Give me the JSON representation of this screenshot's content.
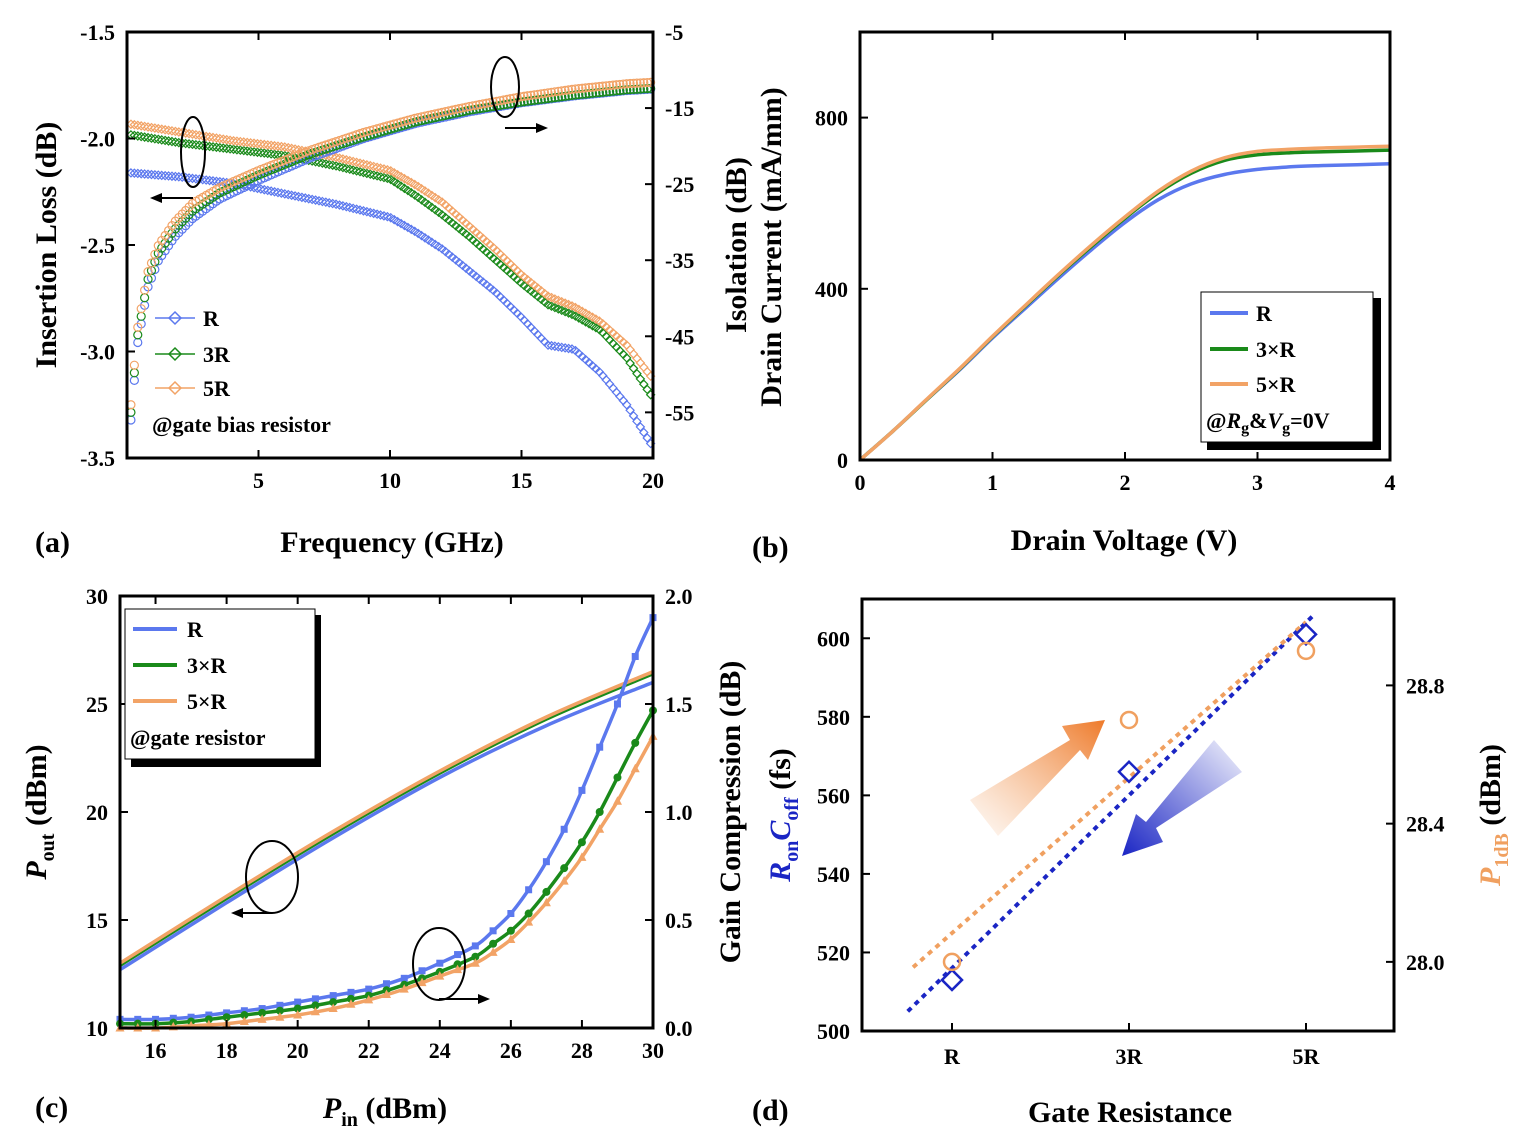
{
  "colors": {
    "R": "#5b78ee",
    "R3": "#1a8a1a",
    "R5": "#f2a366",
    "blue_dark": "#1a25c4",
    "orange": "#f0a060"
  },
  "chart_data": [
    {
      "panel": "(a)",
      "type": "scatter",
      "xlabel": "Frequency (GHz)",
      "ylabel": "Insertion Loss (dB)",
      "y2label": "Isolation (dB)",
      "xlim": [
        0,
        20
      ],
      "ylim": [
        -3.5,
        -1.5
      ],
      "y2lim": [
        -61,
        -5
      ],
      "xticks": [
        5,
        10,
        15,
        20
      ],
      "xtick_labels": [
        "5",
        "10",
        "15",
        "20"
      ],
      "yticks": [
        -3.5,
        -3.0,
        -2.5,
        -2.0,
        -1.5
      ],
      "ytick_labels": [
        "-3.5",
        "-3.0",
        "-2.5",
        "-2.0",
        "-1.5"
      ],
      "y2ticks": [
        -55,
        -45,
        -35,
        -25,
        -15,
        -5
      ],
      "y2tick_labels": [
        "-55",
        "-45",
        "-35",
        "-25",
        "-15",
        "-5"
      ],
      "legend": [
        "R",
        "3R",
        "5R"
      ],
      "annotation": "@gate bias resistor",
      "insertion_loss": {
        "x": [
          0,
          2,
          4,
          6,
          8,
          10,
          11,
          12,
          13,
          14,
          15,
          16,
          17,
          18,
          19,
          20
        ],
        "series": [
          {
            "name": "R",
            "values": [
              -2.16,
              -2.18,
              -2.21,
              -2.26,
              -2.31,
              -2.37,
              -2.44,
              -2.52,
              -2.62,
              -2.72,
              -2.84,
              -2.97,
              -2.99,
              -3.1,
              -3.25,
              -3.45
            ]
          },
          {
            "name": "3R",
            "values": [
              -1.98,
              -2.02,
              -2.05,
              -2.08,
              -2.13,
              -2.19,
              -2.27,
              -2.36,
              -2.46,
              -2.57,
              -2.68,
              -2.78,
              -2.83,
              -2.9,
              -3.03,
              -3.22
            ]
          },
          {
            "name": "5R",
            "values": [
              -1.93,
              -1.97,
              -2.01,
              -2.04,
              -2.09,
              -2.15,
              -2.22,
              -2.3,
              -2.41,
              -2.52,
              -2.64,
              -2.74,
              -2.79,
              -2.86,
              -2.97,
              -3.13
            ]
          }
        ]
      },
      "isolation": {
        "x": [
          0.15,
          0.4,
          0.8,
          1.2,
          1.8,
          2.5,
          3.5,
          5,
          7,
          9,
          11,
          13,
          15,
          17,
          19,
          20
        ],
        "series": [
          {
            "name": "R",
            "values": [
              -56,
              -46,
              -38.5,
              -35,
              -32,
              -29.5,
              -27,
              -24.5,
              -21.5,
              -19,
              -17,
              -15.5,
              -14.3,
              -13.4,
              -12.7,
              -12.5
            ]
          },
          {
            "name": "3R",
            "values": [
              -55,
              -45,
              -37.5,
              -34,
              -31,
              -28.5,
              -26.2,
              -23.8,
              -21,
              -18.8,
              -16.8,
              -15.3,
              -14.2,
              -13.3,
              -12.6,
              -12.4
            ]
          },
          {
            "name": "5R",
            "values": [
              -54,
              -44,
              -36.5,
              -33,
              -30,
              -27.5,
              -25.5,
              -23.2,
              -20.5,
              -18.2,
              -16.3,
              -14.8,
              -13.5,
              -12.5,
              -11.8,
              -11.6
            ]
          }
        ]
      }
    },
    {
      "panel": "(b)",
      "type": "line",
      "xlabel": "Drain Voltage (V)",
      "ylabel": "Drain Current (mA/mm)",
      "xlim": [
        0,
        4
      ],
      "ylim": [
        0,
        1000
      ],
      "xticks": [
        0,
        1,
        2,
        3,
        4
      ],
      "xtick_labels": [
        "0",
        "1",
        "2",
        "3",
        "4"
      ],
      "yticks": [
        0,
        400,
        800
      ],
      "ytick_labels": [
        "0",
        "400",
        "800"
      ],
      "legend": [
        "R",
        "3×R",
        "5×R"
      ],
      "annotation": "@Rg&Vg=0V",
      "x": [
        0,
        0.25,
        0.5,
        0.75,
        1.0,
        1.25,
        1.5,
        1.75,
        2.0,
        2.25,
        2.5,
        2.75,
        3.0,
        3.25,
        3.5,
        3.75,
        4.0
      ],
      "series": [
        {
          "name": "R",
          "values": [
            0,
            68,
            140,
            210,
            285,
            355,
            425,
            492,
            555,
            608,
            645,
            667,
            679,
            685,
            688,
            690,
            692
          ]
        },
        {
          "name": "3×R",
          "values": [
            0,
            68,
            140,
            212,
            288,
            360,
            432,
            500,
            565,
            624,
            670,
            700,
            713,
            718,
            720,
            722,
            724
          ]
        },
        {
          "name": "5×R",
          "values": [
            0,
            68,
            141,
            213,
            289,
            362,
            434,
            503,
            568,
            628,
            675,
            706,
            721,
            726,
            729,
            731,
            733
          ]
        }
      ]
    },
    {
      "panel": "(c)",
      "type": "line",
      "xlabel": "P_in (dBm)",
      "ylabel": "P_out (dBm)",
      "y2label": "Gain Compression (dB)",
      "xlim": [
        15,
        30
      ],
      "ylim": [
        10,
        30
      ],
      "y2lim": [
        0,
        2.0
      ],
      "xticks": [
        16,
        18,
        20,
        22,
        24,
        26,
        28,
        30
      ],
      "xtick_labels": [
        "16",
        "18",
        "20",
        "22",
        "24",
        "26",
        "28",
        "30"
      ],
      "yticks": [
        10,
        15,
        20,
        25,
        30
      ],
      "ytick_labels": [
        "10",
        "15",
        "20",
        "25",
        "30"
      ],
      "y2ticks": [
        0,
        0.5,
        1.0,
        1.5,
        2.0
      ],
      "y2tick_labels": [
        "0.0",
        "0.5",
        "1.0",
        "1.5",
        "2.0"
      ],
      "legend": [
        "R",
        "3×R",
        "5×R"
      ],
      "annotation": "@gate resistor",
      "pout": {
        "x": [
          15,
          18,
          21,
          24,
          27,
          30
        ],
        "series": [
          {
            "name": "R",
            "values": [
              12.7,
              15.8,
              18.8,
              21.6,
              24.0,
              26.0
            ]
          },
          {
            "name": "3×R",
            "values": [
              12.9,
              16.0,
              19.0,
              21.8,
              24.3,
              26.4
            ]
          },
          {
            "name": "5×R",
            "values": [
              13.0,
              16.1,
              19.1,
              21.9,
              24.4,
              26.5
            ]
          }
        ]
      },
      "gain_compression": {
        "x": [
          15,
          16,
          17,
          18,
          19,
          20,
          21,
          22,
          23,
          24,
          25,
          25.5,
          26,
          26.5,
          27,
          27.5,
          28,
          28.5,
          29,
          29.5,
          30
        ],
        "series": [
          {
            "name": "R",
            "values": [
              0.04,
              0.04,
              0.05,
              0.07,
              0.09,
              0.12,
              0.15,
              0.18,
              0.23,
              0.3,
              0.38,
              0.45,
              0.53,
              0.64,
              0.77,
              0.92,
              1.1,
              1.3,
              1.5,
              1.72,
              1.9
            ]
          },
          {
            "name": "3×R",
            "values": [
              0.02,
              0.02,
              0.03,
              0.05,
              0.07,
              0.09,
              0.12,
              0.15,
              0.2,
              0.26,
              0.33,
              0.39,
              0.45,
              0.53,
              0.63,
              0.74,
              0.86,
              1.0,
              1.16,
              1.32,
              1.47
            ]
          },
          {
            "name": "5×R",
            "values": [
              0.0,
              0.0,
              0.01,
              0.02,
              0.04,
              0.06,
              0.09,
              0.13,
              0.18,
              0.24,
              0.3,
              0.35,
              0.41,
              0.49,
              0.58,
              0.68,
              0.79,
              0.92,
              1.05,
              1.2,
              1.35
            ]
          }
        ]
      }
    },
    {
      "panel": "(d)",
      "type": "scatter",
      "xlabel": "Gate Resistance",
      "ylabel": "R_on C_off (fs)",
      "y2label": "P_1dB (dBm)",
      "categories": [
        "R",
        "3R",
        "5R"
      ],
      "ylim": [
        500,
        610
      ],
      "y2lim": [
        27.8,
        29.05
      ],
      "yticks": [
        500,
        520,
        540,
        560,
        580,
        600
      ],
      "ytick_labels": [
        "500",
        "520",
        "540",
        "560",
        "580",
        "600"
      ],
      "y2ticks": [
        28.0,
        28.4,
        28.8
      ],
      "y2tick_labels": [
        "28.0",
        "28.4",
        "28.8"
      ],
      "series": [
        {
          "name": "RonCoff",
          "axis": "left",
          "values": [
            513,
            566,
            601
          ]
        },
        {
          "name": "P1dB",
          "axis": "right",
          "values": [
            28.0,
            28.7,
            28.9
          ]
        }
      ]
    }
  ],
  "labels": {
    "a": "(a)",
    "b": "(b)",
    "c": "(c)",
    "d": "(d)",
    "freq": "Frequency (GHz)",
    "il": "Insertion Loss (dB)",
    "iso": "Isolation (dB)",
    "a_leg1": "R",
    "a_leg2": "3R",
    "a_leg3": "5R",
    "a_note": "@gate bias resistor",
    "vd": "Drain Voltage (V)",
    "id": "Drain Current (mA/mm)",
    "b_leg1": "R",
    "b_leg2": "3×R",
    "b_leg3": "5×R",
    "b_note_at": "@",
    "b_note_r": "R",
    "b_note_g1": "g",
    "b_note_amp": "&",
    "b_note_v": "V",
    "b_note_g2": "g",
    "b_note_tail": "=0V",
    "pin_p": "P",
    "pin_sub": "in",
    "pin_tail": " (dBm)",
    "pout_p": "P",
    "pout_sub": "out",
    "pout_tail": " (dBm)",
    "gc": "Gain Compression (dB)",
    "c_leg1": "R",
    "c_leg2": "3×R",
    "c_leg3": "5×R",
    "c_note": "@gate resistor",
    "gr": "Gate Resistance",
    "ron_r": "R",
    "ron_sub1": "on",
    "ron_c": "C",
    "ron_sub2": "off",
    "ron_tail": " (fs)",
    "p1_p": "P",
    "p1_sub": "1dB",
    "p1_tail": " (dBm)"
  }
}
